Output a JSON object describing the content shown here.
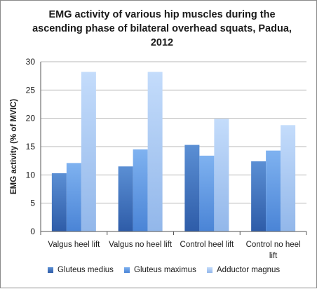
{
  "chart_data": {
    "type": "bar",
    "title_lines": [
      "EMG activity of various hip muscles during the",
      "ascending phase of bilateral overhead squats, Padua,",
      "2012"
    ],
    "ylabel": "EMG activity (% of MVIC)",
    "xlabel": "",
    "ylim": [
      0,
      30
    ],
    "yticks": [
      0,
      5,
      10,
      15,
      20,
      25,
      30
    ],
    "grid": true,
    "legend_position": "bottom",
    "categories": [
      [
        "Valgus heel lift"
      ],
      [
        "Valgus no heel lift"
      ],
      [
        "Control heel lift"
      ],
      [
        "Control no heel",
        "lift"
      ]
    ],
    "series": [
      {
        "name": "Gluteus medius",
        "values": [
          10.3,
          11.5,
          15.3,
          12.4
        ],
        "color_top": "#5b8fd4",
        "color_bottom": "#2e5ca8"
      },
      {
        "name": "Gluteus maximus",
        "values": [
          12.1,
          14.5,
          13.4,
          14.3
        ],
        "color_top": "#7fb2f0",
        "color_bottom": "#4a84d6"
      },
      {
        "name": "Adductor magnus",
        "values": [
          28.2,
          28.2,
          19.9,
          18.8
        ],
        "color_top": "#c4dcfb",
        "color_bottom": "#92b7ea"
      }
    ]
  }
}
